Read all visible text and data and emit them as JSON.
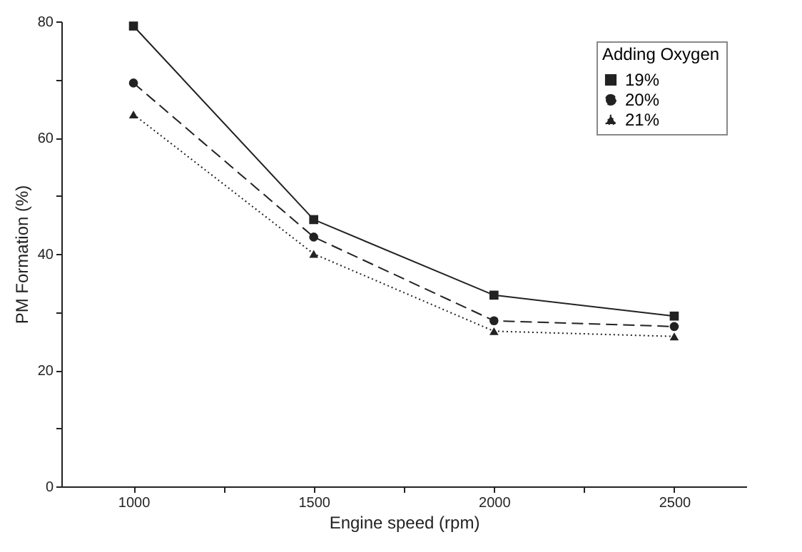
{
  "chart_data": {
    "type": "line",
    "xlabel": "Engine speed (rpm)",
    "ylabel": "PM Formation (%)",
    "legend_title": "Adding Oxygen",
    "legend": "top right",
    "grid": false,
    "x": [
      1000,
      1500,
      2000,
      2500
    ],
    "series": [
      {
        "name": "19%",
        "color": "#222222",
        "marker": "square",
        "line_style": "solid",
        "values": [
          79.2,
          45.9,
          32.9,
          29.3
        ]
      },
      {
        "name": "20%",
        "color": "#222222",
        "marker": "circle",
        "line_style": "dashed",
        "values": [
          69.4,
          42.9,
          28.5,
          27.5
        ]
      },
      {
        "name": "21%",
        "color": "#222222",
        "marker": "triangle",
        "line_style": "dotted",
        "values": [
          64,
          40,
          26.7,
          25.8
        ]
      }
    ],
    "xlim": [
      800,
      2700
    ],
    "xticks": [
      1000,
      {
        "value": 1250,
        "label": null
      },
      1500,
      {
        "value": 1750,
        "label": null
      },
      2000,
      {
        "value": 2250,
        "label": null
      },
      2500
    ],
    "ylim": [
      0,
      80
    ],
    "yticks": [
      0,
      {
        "value": 10,
        "label": null
      },
      20,
      {
        "value": 30,
        "label": null
      },
      40,
      {
        "value": 50,
        "label": null
      },
      60,
      {
        "value": 70,
        "label": null
      },
      80
    ]
  }
}
